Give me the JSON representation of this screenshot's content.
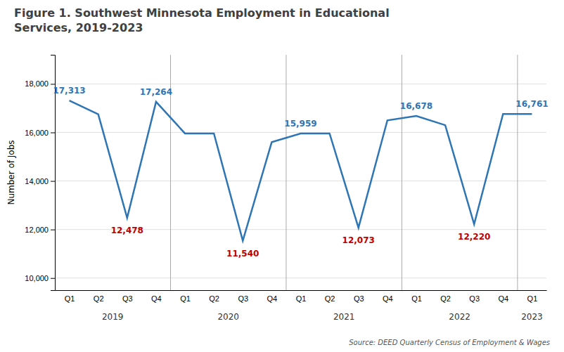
{
  "chart_data": {
    "type": "line",
    "title": "Figure 1. Southwest Minnesota Employment in Educational\nServices, 2019-2023",
    "ylabel": "Number of Jobs",
    "source": "Source: DEED Quarterly Census of Employment & Wages",
    "categories": [
      "Q1",
      "Q2",
      "Q3",
      "Q4",
      "Q1",
      "Q2",
      "Q3",
      "Q4",
      "Q1",
      "Q2",
      "Q3",
      "Q4",
      "Q1",
      "Q2",
      "Q3",
      "Q4",
      "Q1"
    ],
    "values": [
      17313,
      16750,
      12478,
      17264,
      15959,
      15959,
      11540,
      15600,
      15959,
      15959,
      12073,
      16500,
      16678,
      16300,
      12220,
      16761,
      16761
    ],
    "color": "#2E75B6",
    "ylim": [
      9500,
      19200
    ],
    "yticks": [
      {
        "value": 10000,
        "label": "10,000"
      },
      {
        "value": 12000,
        "label": "12,000"
      },
      {
        "value": 14000,
        "label": "14,000"
      },
      {
        "value": 16000,
        "label": "16,000"
      },
      {
        "value": 18000,
        "label": "18,000"
      }
    ],
    "grid": true,
    "annotations": [
      {
        "index": 0,
        "value": 17313,
        "label": "17,313",
        "color": "#2E75B6",
        "position": "above"
      },
      {
        "index": 2,
        "value": 12478,
        "label": "12,478",
        "color": "#C00000",
        "position": "below"
      },
      {
        "index": 3,
        "value": 17264,
        "label": "17,264",
        "color": "#2E75B6",
        "position": "above"
      },
      {
        "index": 6,
        "value": 11540,
        "label": "11,540",
        "color": "#C00000",
        "position": "below"
      },
      {
        "index": 8,
        "value": 15959,
        "label": "15,959",
        "color": "#2E75B6",
        "position": "above"
      },
      {
        "index": 10,
        "value": 12073,
        "label": "12,073",
        "color": "#C00000",
        "position": "below"
      },
      {
        "index": 12,
        "value": 16678,
        "label": "16,678",
        "color": "#2E75B6",
        "position": "above"
      },
      {
        "index": 14,
        "value": 12220,
        "label": "12,220",
        "color": "#C00000",
        "position": "below"
      },
      {
        "index": 16,
        "value": 16761,
        "label": "16,761",
        "color": "#2E75B6",
        "position": "above"
      }
    ],
    "year_labels": [
      {
        "label": "2019",
        "x": 1.5
      },
      {
        "label": "2020",
        "x": 5.5
      },
      {
        "label": "2021",
        "x": 9.5
      },
      {
        "label": "2022",
        "x": 13.5
      },
      {
        "label": "2023",
        "x": 16.0
      }
    ],
    "separators": [
      3.5,
      7.5,
      11.5,
      15.5
    ]
  }
}
